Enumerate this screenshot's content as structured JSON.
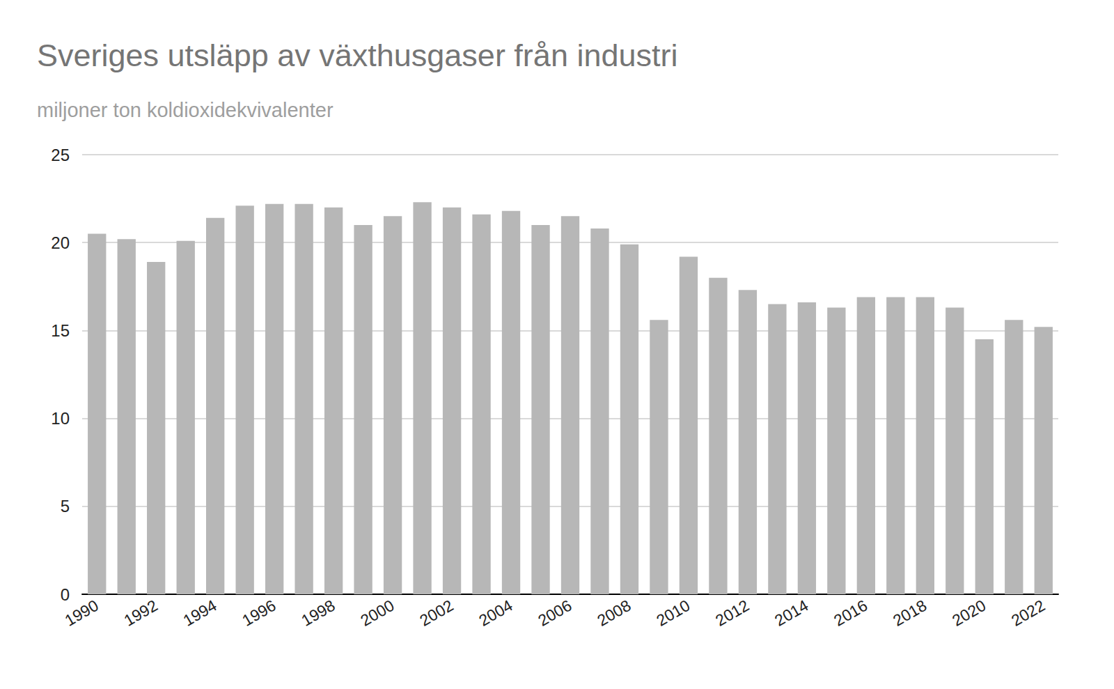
{
  "chart_data": {
    "type": "bar",
    "title": "Sveriges utsläpp av växthusgaser från industri",
    "subtitle": "miljoner ton koldioxidekvivalenter",
    "categories": [
      "1990",
      null,
      "1992",
      null,
      "1994",
      null,
      "1996",
      null,
      "1998",
      null,
      "2000",
      null,
      "2002",
      null,
      "2004",
      null,
      "2006",
      null,
      "2008",
      null,
      "2010",
      null,
      "2012",
      null,
      "2014",
      null,
      "2016",
      null,
      "2018",
      null,
      "2020",
      null,
      "2022"
    ],
    "values": [
      20.5,
      20.2,
      18.9,
      20.1,
      21.4,
      22.1,
      22.2,
      22.2,
      22.0,
      21.0,
      21.5,
      22.3,
      22.0,
      21.6,
      21.8,
      21.0,
      21.5,
      20.8,
      19.9,
      15.6,
      19.2,
      18.0,
      17.3,
      16.5,
      16.6,
      16.3,
      16.9,
      16.9,
      16.9,
      16.3,
      14.5,
      15.6,
      15.2
    ],
    "color": "#b7b7b7",
    "ylim": [
      0,
      25
    ],
    "yticks": [
      0,
      5,
      10,
      15,
      20,
      25
    ],
    "grid": true
  }
}
